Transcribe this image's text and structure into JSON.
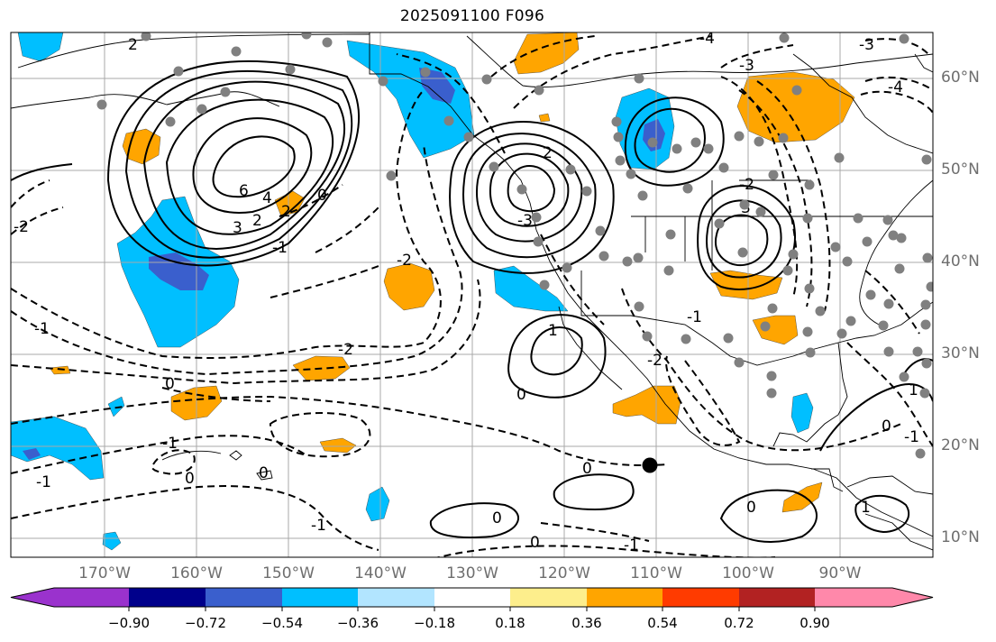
{
  "title": "2025091100 F096",
  "map": {
    "lat_labels": [
      "60°N",
      "50°N",
      "40°N",
      "30°N",
      "20°N",
      "10°N"
    ],
    "lon_labels": [
      "170°W",
      "160°W",
      "150°W",
      "140°W",
      "130°W",
      "120°W",
      "110°W",
      "100°W",
      "90°W"
    ],
    "contour_labels": [
      "2",
      "-4",
      "-3",
      "-4",
      "-3",
      "6",
      "4",
      "3",
      "2",
      "2",
      "0",
      "-1",
      "0",
      "-2",
      "2",
      "-3",
      "-2",
      "3",
      "-2",
      "-1",
      "-2",
      "0",
      "-1",
      "1",
      "0",
      "-2",
      "-1",
      "0",
      "-1",
      "0",
      "-1",
      "0",
      "0",
      "1",
      "0",
      "-1",
      "-1",
      "0",
      "1"
    ]
  },
  "colorbar": {
    "tick_labels": [
      "−0.90",
      "−0.72",
      "−0.54",
      "−0.36",
      "−0.18",
      "0.18",
      "0.36",
      "0.54",
      "0.72",
      "0.90"
    ],
    "colors": [
      "#9a32cd",
      "#00008b",
      "#3a5fcd",
      "#00bfff",
      "#b2e5ff",
      "#ffffff",
      "#fdee8c",
      "#ffa500",
      "#ff3b00",
      "#b22222",
      "#ff88aa"
    ]
  }
}
